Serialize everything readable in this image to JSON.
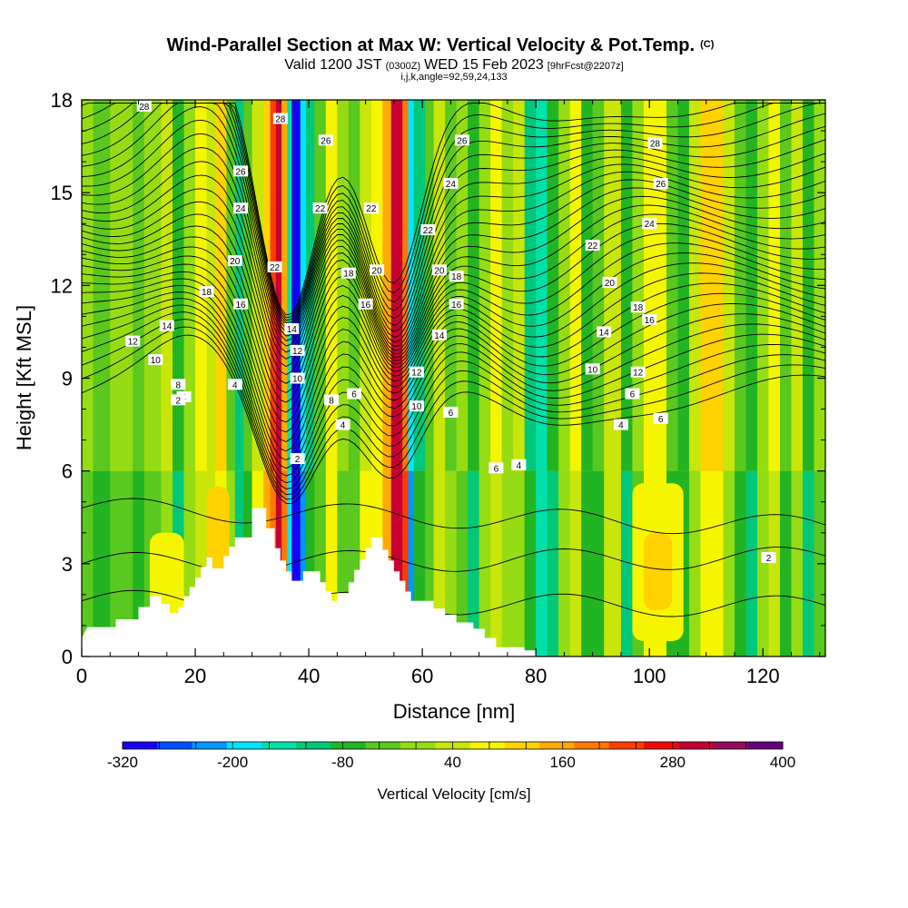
{
  "title": {
    "main": "Wind-Parallel Section at Max W: Vertical Velocity & Pot.Temp.",
    "main_suffix": "(C)",
    "valid_pre": "Valid 1200 JST",
    "valid_zulu": "(0300Z)",
    "valid_date": "WED 15 Feb 2023",
    "forecast": "[9hrFcst@2207z]",
    "indices": "i,j,k,angle=92,59,24,133"
  },
  "chart_data": {
    "type": "heatmap",
    "xlabel": "Distance [nm]",
    "ylabel": "Height [Kft MSL]",
    "xlim": [
      0,
      131
    ],
    "ylim": [
      0,
      18
    ],
    "x_ticks": [
      "0",
      "20",
      "40",
      "60",
      "80",
      "100",
      "120"
    ],
    "y_ticks": [
      "0",
      "3",
      "6",
      "9",
      "12",
      "15",
      "18"
    ],
    "colorbar": {
      "title": "Vertical Velocity [cm/s]",
      "min": -320,
      "max": 400,
      "step": 40,
      "tick_labels": [
        "-320",
        "-200",
        "-80",
        "40",
        "160",
        "280",
        "400"
      ],
      "colors": [
        "#1a00f0",
        "#0050ff",
        "#0095ff",
        "#00e6ff",
        "#00e0a8",
        "#00c878",
        "#22b422",
        "#5ac81e",
        "#96dc14",
        "#c8e60a",
        "#f5f500",
        "#ffd200",
        "#ffaa00",
        "#ff7800",
        "#ff3c00",
        "#ee0a0a",
        "#c80032",
        "#960a5a",
        "#64007d"
      ]
    },
    "contour_labels": [
      "28",
      "26",
      "24",
      "22",
      "20",
      "18",
      "16",
      "14",
      "12",
      "10",
      "8",
      "6",
      "4",
      "2"
    ],
    "terrain_profile": [
      [
        0,
        0.6
      ],
      [
        1,
        0.95
      ],
      [
        6,
        0.95
      ],
      [
        6,
        1.2
      ],
      [
        10,
        1.2
      ],
      [
        10,
        1.6
      ],
      [
        12,
        1.6
      ],
      [
        12,
        1.95
      ],
      [
        14,
        1.95
      ],
      [
        14,
        1.7
      ],
      [
        15.5,
        1.7
      ],
      [
        15.5,
        1.4
      ],
      [
        17,
        1.4
      ],
      [
        17,
        1.6
      ],
      [
        18,
        1.6
      ],
      [
        18,
        1.95
      ],
      [
        19,
        1.95
      ],
      [
        19,
        2.25
      ],
      [
        20,
        2.25
      ],
      [
        20,
        2.55
      ],
      [
        21,
        2.55
      ],
      [
        21,
        2.9
      ],
      [
        22,
        2.9
      ],
      [
        22,
        3.2
      ],
      [
        23,
        3.2
      ],
      [
        23,
        2.85
      ],
      [
        25,
        2.85
      ],
      [
        25,
        3.25
      ],
      [
        26,
        3.25
      ],
      [
        26,
        3.55
      ],
      [
        27,
        3.55
      ],
      [
        27,
        3.85
      ],
      [
        30,
        3.85
      ],
      [
        30,
        4.8
      ],
      [
        32.5,
        4.8
      ],
      [
        32.5,
        4.15
      ],
      [
        34,
        4.15
      ],
      [
        34,
        3.5
      ],
      [
        35,
        3.5
      ],
      [
        35,
        3.1
      ],
      [
        36,
        3.1
      ],
      [
        36,
        2.75
      ],
      [
        37,
        2.75
      ],
      [
        37,
        2.45
      ],
      [
        39,
        2.45
      ],
      [
        39,
        2.75
      ],
      [
        42,
        2.75
      ],
      [
        42,
        2.4
      ],
      [
        43,
        2.4
      ],
      [
        43,
        2.1
      ],
      [
        44,
        2.1
      ],
      [
        44,
        1.8
      ],
      [
        45,
        1.8
      ],
      [
        45,
        2.05
      ],
      [
        47,
        2.05
      ],
      [
        47,
        2.4
      ],
      [
        48,
        2.4
      ],
      [
        48,
        2.8
      ],
      [
        49,
        2.8
      ],
      [
        49,
        3.15
      ],
      [
        50,
        3.15
      ],
      [
        50,
        3.5
      ],
      [
        51,
        3.5
      ],
      [
        51,
        3.85
      ],
      [
        53,
        3.85
      ],
      [
        53,
        3.45
      ],
      [
        54,
        3.45
      ],
      [
        54,
        3.1
      ],
      [
        55,
        3.1
      ],
      [
        55,
        2.75
      ],
      [
        56,
        2.75
      ],
      [
        56,
        2.45
      ],
      [
        57,
        2.45
      ],
      [
        57,
        2.1
      ],
      [
        58,
        2.1
      ],
      [
        58,
        1.8
      ],
      [
        62,
        1.8
      ],
      [
        62,
        1.55
      ],
      [
        64,
        1.55
      ],
      [
        64,
        1.35
      ],
      [
        66,
        1.35
      ],
      [
        66,
        1.1
      ],
      [
        69,
        1.1
      ],
      [
        69,
        0.9
      ],
      [
        71,
        0.9
      ],
      [
        71,
        0.6
      ],
      [
        73,
        0.6
      ],
      [
        73,
        0.3
      ],
      [
        78,
        0.3
      ],
      [
        78,
        0.2
      ],
      [
        80,
        0.2
      ],
      [
        80,
        0
      ],
      [
        131,
        0
      ]
    ]
  }
}
